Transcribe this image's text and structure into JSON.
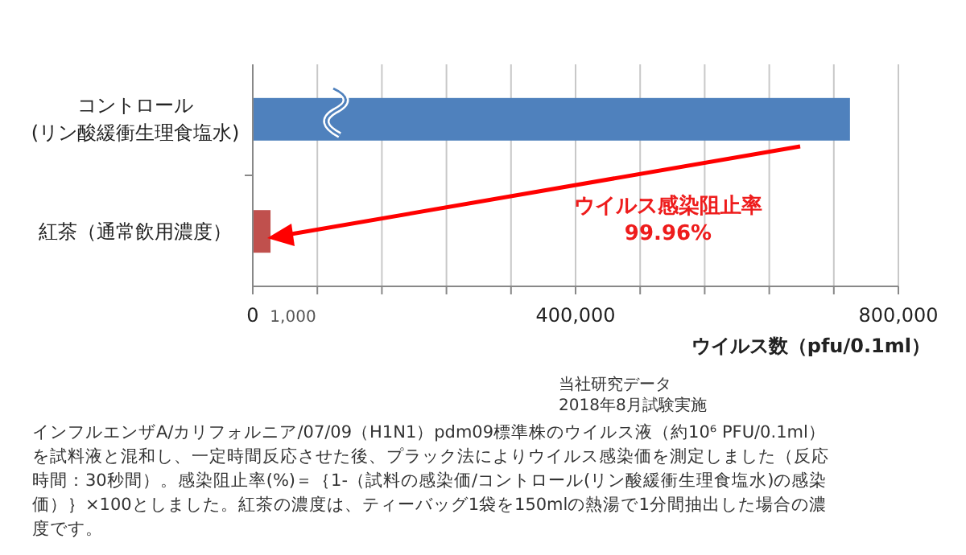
{
  "chart_data": {
    "type": "bar",
    "orientation": "horizontal",
    "categories": [
      "コントロール\n(リン酸緩衝生理食塩水)",
      "紅茶（通常飲用濃度）"
    ],
    "values": [
      740000,
      22000
    ],
    "colors": [
      "#4f81bd",
      "#c0504d"
    ],
    "xlim": [
      0,
      800000
    ],
    "xticks": [
      0,
      {
        "value": 80000,
        "label": null
      },
      {
        "value": 160000,
        "label": null
      },
      {
        "value": 240000,
        "label": null
      },
      {
        "value": 320000,
        "label": null
      },
      {
        "value": 400000,
        "label": "400,000"
      },
      {
        "value": 480000,
        "label": null
      },
      {
        "value": 560000,
        "label": null
      },
      {
        "value": 640000,
        "label": null
      },
      {
        "value": 720000,
        "label": null
      },
      {
        "value": 800000,
        "label": "800,000"
      }
    ],
    "grid": "x",
    "xlabel": "ウイルス数（pfu/0.1ml）",
    "annotations": [
      "ウイルス感染阻止率\n99.96%",
      "1,000",
      "当社研究データ\n2018年8月試験実施",
      "インフルエンザA/カリフォルニア/07/09（H1N1）pdm09標準株のウイルス液（約10⁶ PFU/0.1ml）を試料液と混和し、一定時間反応させた後、プラック法によりウイルス感染価を測定しました（反応時間：30秒間）。感染阻止率(%)＝｛1-（試料の感染価/コントロール(リン酸緩衝生理食塩水)の感染価）｝×100としました。紅茶の濃度は、ティーバッグ1袋を150mlの熱湯で1分間抽出した場合の濃度です。"
    ]
  }
}
